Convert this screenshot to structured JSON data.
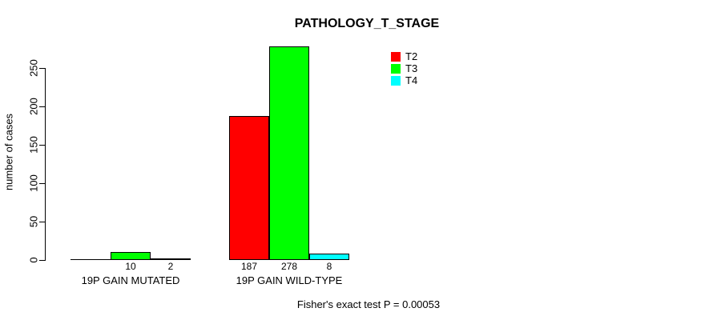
{
  "chart_data": {
    "type": "bar",
    "title": "PATHOLOGY_T_STAGE",
    "xlabel": "",
    "ylabel": "number of cases",
    "categories": [
      "19P GAIN MUTATED",
      "19P GAIN WILD-TYPE"
    ],
    "series": [
      {
        "name": "T2",
        "color": "#ff0000",
        "values": [
          0,
          187
        ]
      },
      {
        "name": "T3",
        "color": "#00ff00",
        "values": [
          10,
          278
        ]
      },
      {
        "name": "T4",
        "color": "#00ffff",
        "values": [
          2,
          8
        ]
      }
    ],
    "bar_value_labels": [
      [
        "",
        "10",
        "2"
      ],
      [
        "187",
        "278",
        "8"
      ]
    ],
    "yticks": [
      0,
      50,
      100,
      150,
      200,
      250
    ],
    "ylim": [
      0,
      278
    ],
    "grid": false,
    "legend_position": "top-right",
    "annotation": "Fisher's exact test P = 0.00053",
    "bar_border_color": "#000000",
    "text_color": "#000000",
    "background": "#ffffff"
  }
}
